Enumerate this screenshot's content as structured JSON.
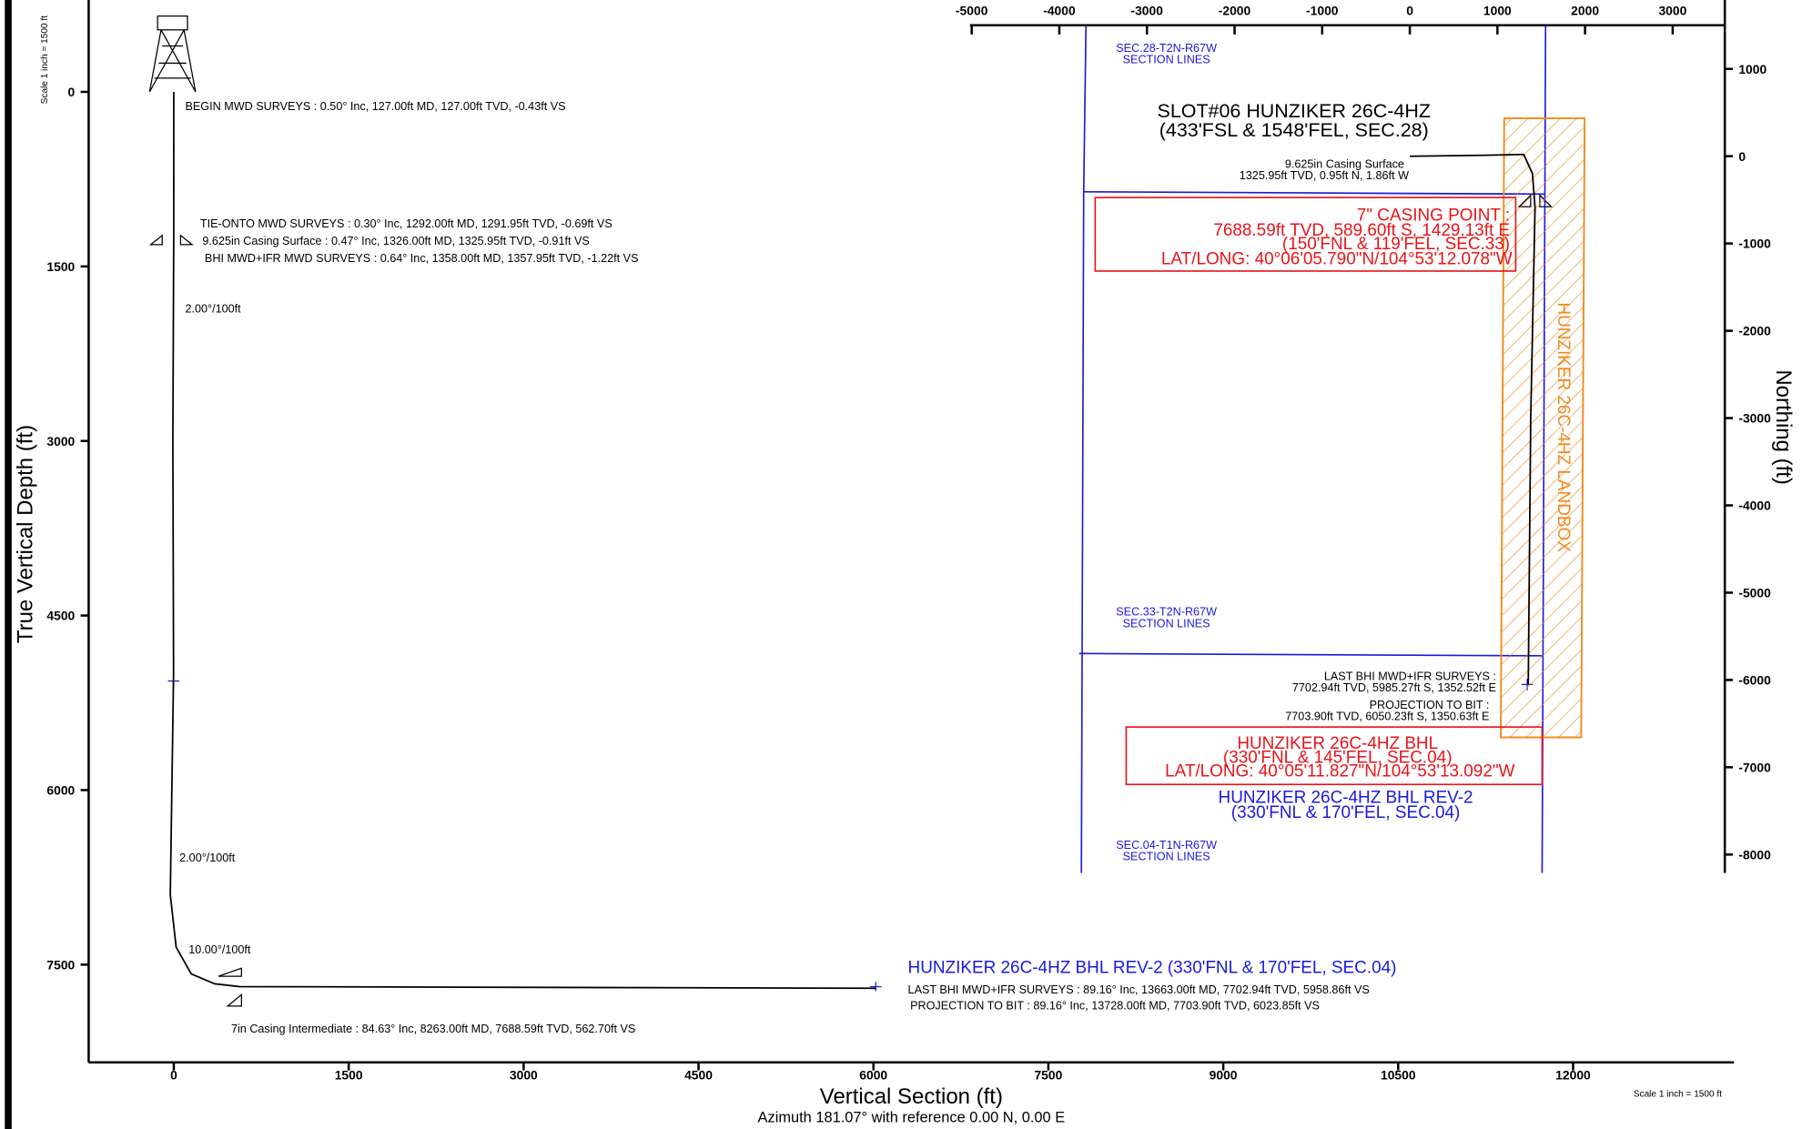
{
  "chart_data": [
    {
      "type": "line",
      "xlabel": "Vertical Section (ft)",
      "azimuth_note": "Azimuth 181.07° with reference 0.00 N, 0.00 E",
      "ylabel": "True Vertical Depth (ft)",
      "scale_note": "Scale 1 inch = 1500 ft",
      "scale_note_bottom": "Scale 1 inch = 1500 ft",
      "xlim": [
        -730,
        13380
      ],
      "ylim": [
        -740,
        8340
      ],
      "y_inverted": true,
      "xticks": [
        0,
        1500,
        3000,
        4500,
        6000,
        7500,
        9000,
        10500,
        12000
      ],
      "yticks": [
        0,
        1500,
        3000,
        4500,
        6000,
        7500
      ],
      "color": "#000000",
      "x": [
        0,
        -0.43,
        -0.69,
        -0.91,
        -1.22,
        -8,
        -2,
        -30,
        20,
        150,
        350,
        562.7,
        5958.86,
        6023.85
      ],
      "values": [
        0,
        127,
        1291.95,
        1325.95,
        1357.95,
        3000,
        5000,
        6900,
        7350,
        7580,
        7665,
        7688.59,
        7702.94,
        7703.9
      ],
      "annotations": [
        "BEGIN MWD SURVEYS : 0.50° Inc, 127.00ft MD, 127.00ft TVD, -0.43ft VS",
        "TIE-ONTO MWD SURVEYS : 0.30° Inc, 1292.00ft MD, 1291.95ft TVD, -0.69ft VS",
        "9.625in Casing Surface : 0.47° Inc, 1326.00ft MD, 1325.95ft TVD, -0.91ft VS",
        "BHI MWD+IFR MWD SURVEYS : 0.64° Inc, 1358.00ft MD, 1357.95ft TVD, -1.22ft VS",
        "2.00°/100ft",
        "2.00°/100ft",
        "10.00°/100ft",
        "7in Casing Intermediate : 84.63° Inc, 8263.00ft MD, 7688.59ft TVD, 562.70ft VS",
        "HUNZIKER 26C-4HZ BHL REV-2 (330'FNL & 170'FEL, SEC.04)",
        "LAST BHI MWD+IFR SURVEYS : 89.16° Inc, 13663.00ft MD, 7702.94ft TVD, 5958.86ft VS",
        "PROJECTION TO BIT : 89.16° Inc, 13728.00ft MD, 7703.90ft TVD, 6023.85ft VS"
      ]
    },
    {
      "type": "line",
      "ylabel": "Northing (ft)",
      "xlim": [
        -5020,
        3595
      ],
      "ylim": [
        -8210,
        1500
      ],
      "xticks": [
        -5000,
        -4000,
        -3000,
        -2000,
        -1000,
        0,
        1000,
        2000,
        3000
      ],
      "yticks": [
        1000,
        0,
        -1000,
        -2000,
        -3000,
        -4000,
        -5000,
        -6000,
        -7000,
        -8000
      ],
      "color": "#000000",
      "x": [
        0,
        800,
        1300,
        1400,
        1429.13,
        1380,
        1352.52,
        1350.63
      ],
      "values": [
        0,
        10,
        20,
        -200,
        -589.6,
        -3000,
        -5985.27,
        -6050.23
      ],
      "annotations": [
        "SEC.28-T2N-R67W",
        "SECTION LINES",
        "SLOT#06 HUNZIKER 26C-4HZ",
        "(433'FSL & 1548'FEL, SEC.28)",
        "9.625in Casing Surface",
        "1325.95ft TVD, 0.95ft N, 1.86ft W",
        "7\" CASING POINT :",
        "7688.59ft TVD, 589.60ft S, 1429.13ft E",
        "(150'FNL & 119'FEL, SEC.33)",
        "LAT/LONG: 40°06'05.790\"N/104°53'12.078\"W",
        "SEC.33-T2N-R67W",
        "SECTION LINES",
        "LAST BHI MWD+IFR SURVEYS :",
        "7702.94ft TVD, 5985.27ft S, 1352.52ft E",
        "PROJECTION TO BIT :",
        "7703.90ft TVD, 6050.23ft S, 1350.63ft E",
        "HUNZIKER 26C-4HZ BHL",
        "(330'FNL & 145'FEL, SEC.04)",
        "LAT/LONG: 40°05'11.827\"N/104°53'13.092\"W",
        "HUNZIKER 26C-4HZ BHL REV-2",
        "(330'FNL & 170'FEL, SEC.04)",
        "SEC.04-T1N-R67W",
        "SECTION LINES",
        "HUNZIKER 26C-4HZ LANDBOX"
      ]
    }
  ]
}
